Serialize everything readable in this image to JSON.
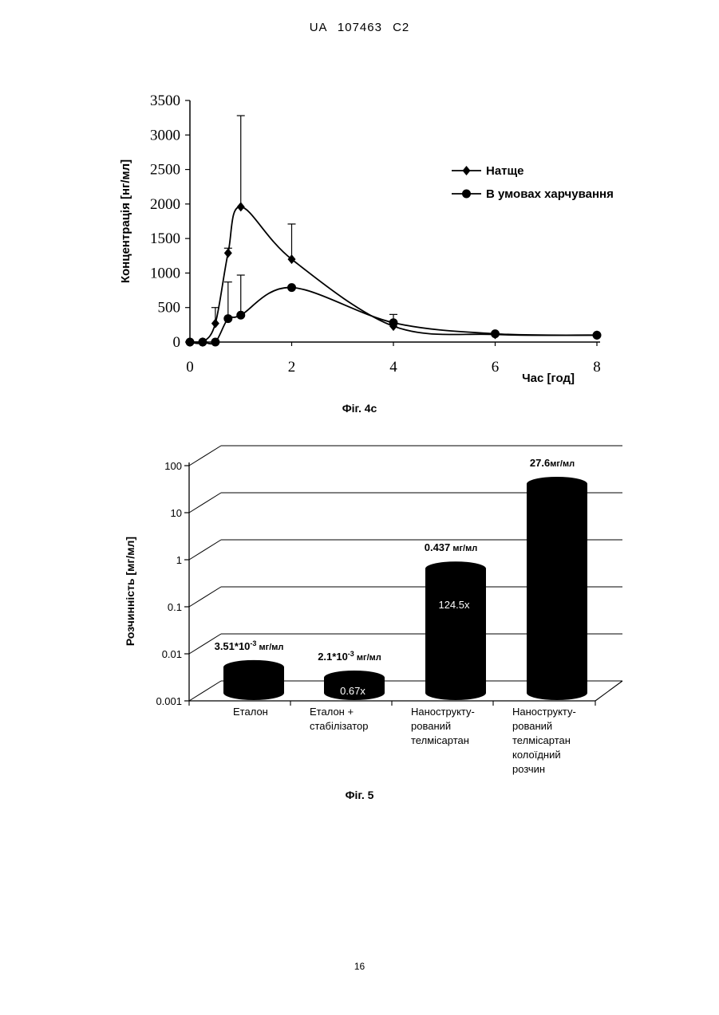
{
  "header": {
    "patent_id": "UA   107463   C2"
  },
  "page_number": "16",
  "figures": [
    {
      "caption": "Фіг. 4с"
    },
    {
      "caption": "Фіг. 5"
    }
  ],
  "chart_data": [
    {
      "type": "line",
      "xlabel": "Час [год]",
      "ylabel": "Концентрація [нг/мл]",
      "xlim": [
        0,
        8
      ],
      "ylim": [
        0,
        3500
      ],
      "xticks": [
        "0",
        "2",
        "4",
        "6",
        "8"
      ],
      "yticks": [
        "0",
        "500",
        "1000",
        "1500",
        "2000",
        "2500",
        "3000",
        "3500"
      ],
      "legend_position": "top-right",
      "series": [
        {
          "name": "Натще",
          "marker": "diamond",
          "x": [
            0,
            0.25,
            0.5,
            0.75,
            1,
            2,
            4,
            6,
            8
          ],
          "y": [
            0,
            0,
            270,
            1290,
            1960,
            1200,
            230,
            110,
            100
          ],
          "error_plus": [
            0,
            0,
            230,
            70,
            1320,
            510,
            170,
            0,
            0
          ]
        },
        {
          "name": "В умовах харчування",
          "marker": "circle",
          "x": [
            0,
            0.25,
            0.5,
            0.75,
            1,
            2,
            4,
            6,
            8
          ],
          "y": [
            0,
            0,
            0,
            340,
            390,
            790,
            280,
            120,
            100
          ],
          "error_plus": [
            0,
            0,
            0,
            530,
            580,
            0,
            0,
            0,
            0
          ]
        }
      ]
    },
    {
      "type": "bar",
      "ylabel": "Розчинність [мг/мл]",
      "yscale": "log",
      "ylim": [
        0.001,
        100
      ],
      "yticks": [
        "0.001",
        "0.01",
        "0.1",
        "1",
        "10",
        "100"
      ],
      "categories": [
        [
          "Еталон"
        ],
        [
          "Еталон +",
          "стабілізатор"
        ],
        [
          "Нанострукту-",
          "рований",
          "телмісартан"
        ],
        [
          "Нанострукту-",
          "рований",
          "телмісартан",
          "колоїдний",
          "розчин"
        ]
      ],
      "values": [
        0.00351,
        0.0021,
        0.437,
        27.6
      ],
      "value_labels": [
        {
          "main": "3.51*10",
          "sup": "-3",
          "unit": " мг/мл"
        },
        {
          "main": "2.1*10",
          "sup": "-3",
          "unit": " мг/мл"
        },
        {
          "main": "0.437",
          "sup": "",
          "unit": " мг/мл"
        },
        {
          "main": "27.6",
          "sup": "",
          "unit": "мг/мл"
        }
      ],
      "inner_labels": [
        "",
        "0.67x",
        "124.5x",
        ""
      ]
    }
  ]
}
